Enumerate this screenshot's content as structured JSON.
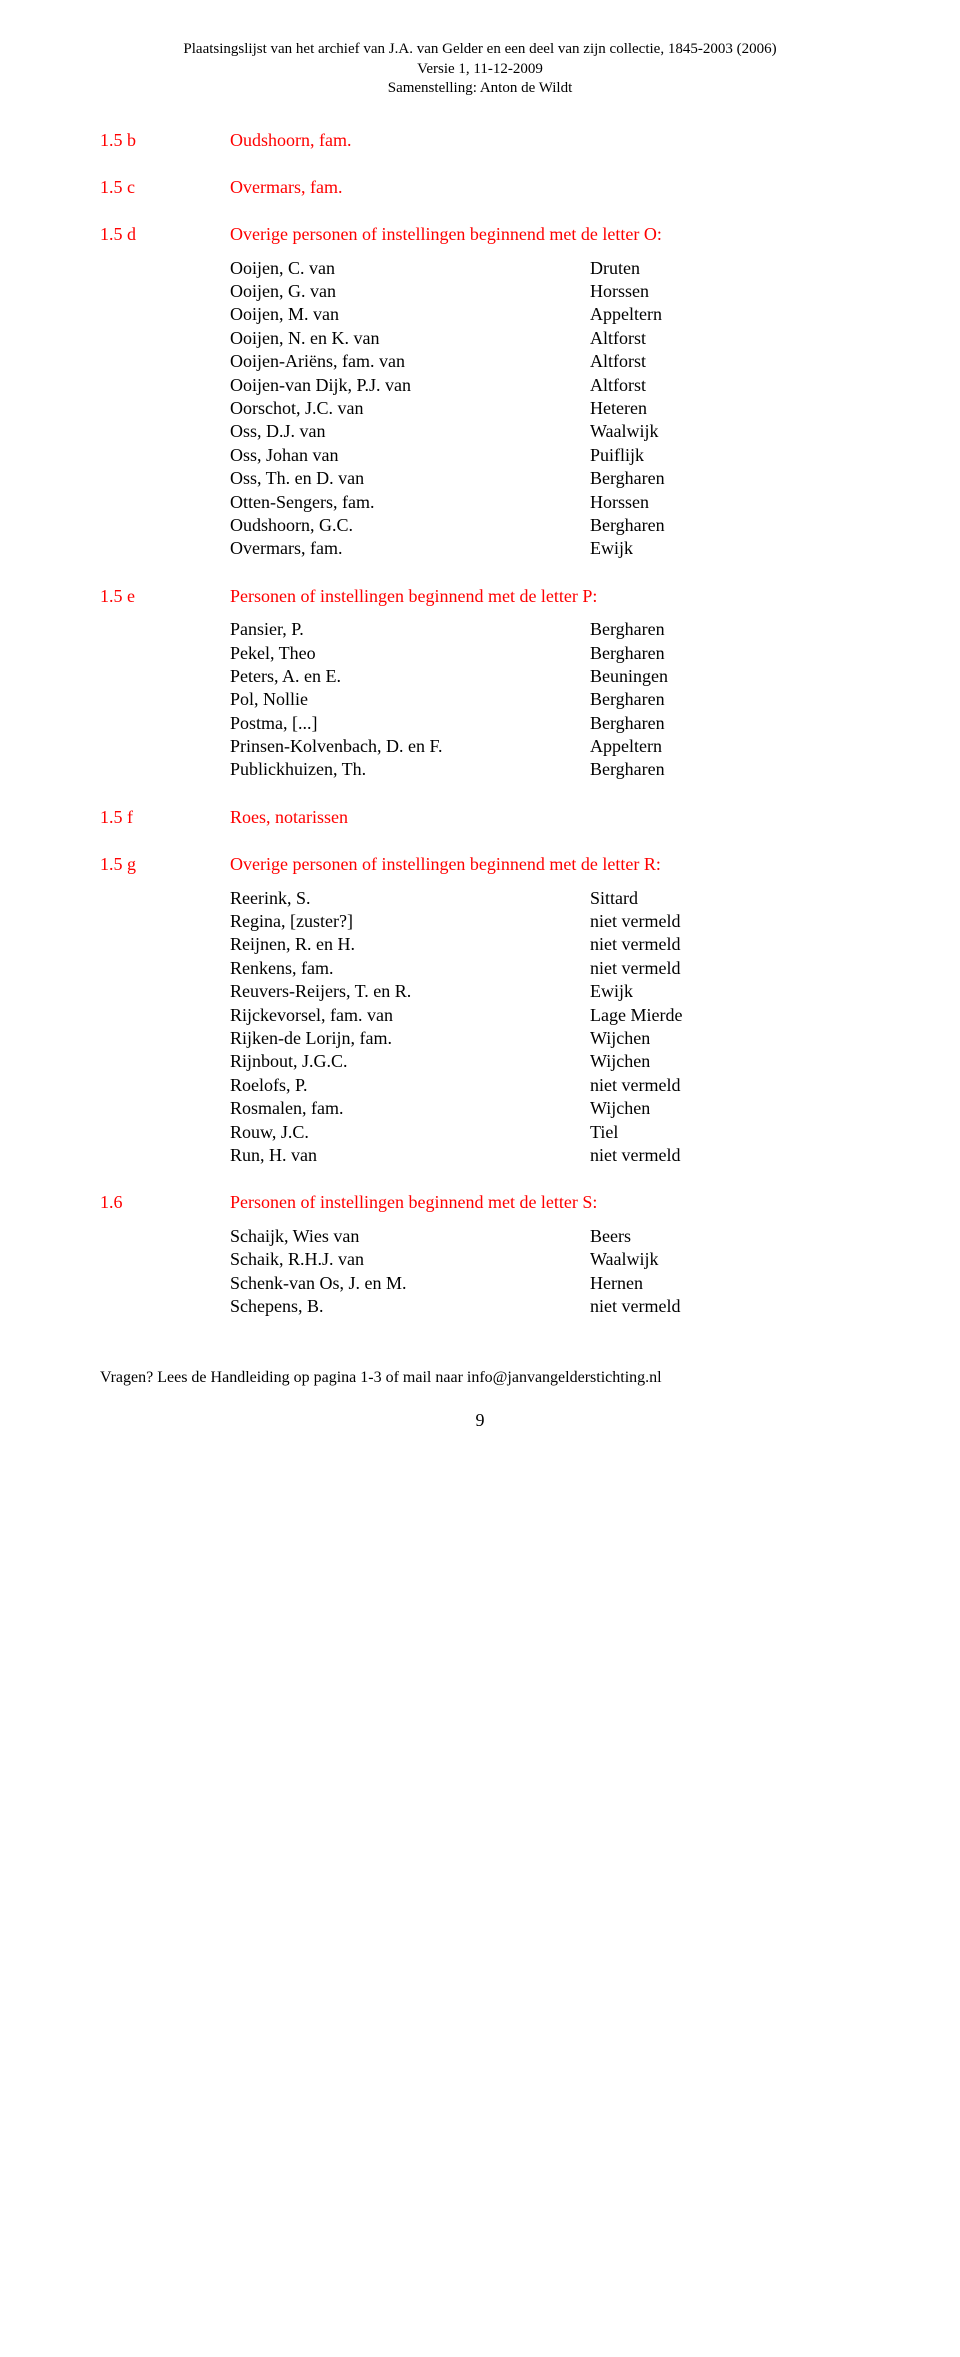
{
  "header": {
    "line1": "Plaatsingslijst van het archief van J.A. van Gelder en een deel van zijn collectie, 1845-2003 (2006)",
    "line2": "Versie 1, 11-12-2009",
    "line3": "Samenstelling: Anton de Wildt"
  },
  "sections": [
    {
      "num": "1.5 b",
      "title": "Oudshoorn, fam.",
      "entries": []
    },
    {
      "num": "1.5 c",
      "title": "Overmars, fam.",
      "entries": []
    },
    {
      "num": "1.5 d",
      "title": "Overige personen of instellingen beginnend met de letter O:",
      "entries": [
        {
          "name": "Ooijen, C. van",
          "place": "Druten"
        },
        {
          "name": "Ooijen, G. van",
          "place": "Horssen"
        },
        {
          "name": "Ooijen, M. van",
          "place": "Appeltern"
        },
        {
          "name": "Ooijen, N. en K. van",
          "place": "Altforst"
        },
        {
          "name": "Ooijen-Ariëns, fam. van",
          "place": "Altforst"
        },
        {
          "name": "Ooijen-van Dijk, P.J. van",
          "place": "Altforst"
        },
        {
          "name": "Oorschot, J.C. van",
          "place": "Heteren"
        },
        {
          "name": "Oss, D.J. van",
          "place": "Waalwijk"
        },
        {
          "name": "Oss, Johan van",
          "place": "Puiflijk"
        },
        {
          "name": "Oss, Th. en D. van",
          "place": "Bergharen"
        },
        {
          "name": "Otten-Sengers, fam.",
          "place": "Horssen"
        },
        {
          "name": "Oudshoorn, G.C.",
          "place": "Bergharen"
        },
        {
          "name": "Overmars, fam.",
          "place": "Ewijk"
        }
      ]
    },
    {
      "num": "1.5 e",
      "title": "Personen of instellingen beginnend met de letter P:",
      "entries": [
        {
          "name": "Pansier, P.",
          "place": "Bergharen"
        },
        {
          "name": "Pekel, Theo",
          "place": "Bergharen"
        },
        {
          "name": "Peters, A. en E.",
          "place": "Beuningen"
        },
        {
          "name": "Pol, Nollie",
          "place": "Bergharen"
        },
        {
          "name": "Postma, [...]",
          "place": "Bergharen"
        },
        {
          "name": "Prinsen-Kolvenbach, D. en F.",
          "place": "Appeltern"
        },
        {
          "name": "Publickhuizen, Th.",
          "place": "Bergharen"
        }
      ]
    },
    {
      "num": "1.5 f",
      "title": "Roes, notarissen",
      "entries": []
    },
    {
      "num": "1.5 g",
      "title": "Overige personen of instellingen beginnend met de letter R:",
      "entries": [
        {
          "name": "Reerink, S.",
          "place": "Sittard"
        },
        {
          "name": "Regina, [zuster?]",
          "place": "niet vermeld"
        },
        {
          "name": "Reijnen, R. en H.",
          "place": "niet vermeld"
        },
        {
          "name": "Renkens, fam.",
          "place": "niet vermeld"
        },
        {
          "name": "Reuvers-Reijers, T. en R.",
          "place": "Ewijk"
        },
        {
          "name": "Rijckevorsel, fam. van",
          "place": "Lage Mierde"
        },
        {
          "name": "Rijken-de Lorijn, fam.",
          "place": "Wijchen"
        },
        {
          "name": "Rijnbout, J.G.C.",
          "place": "Wijchen"
        },
        {
          "name": "Roelofs, P.",
          "place": "niet vermeld"
        },
        {
          "name": "Rosmalen, fam.",
          "place": "Wijchen"
        },
        {
          "name": "Rouw, J.C.",
          "place": "Tiel"
        },
        {
          "name": "Run, H. van",
          "place": "niet vermeld"
        }
      ]
    },
    {
      "num": "1.6",
      "title": "Personen of instellingen beginnend met de letter S:",
      "entries": [
        {
          "name": "Schaijk, Wies van",
          "place": "Beers"
        },
        {
          "name": "Schaik, R.H.J. van",
          "place": "Waalwijk"
        },
        {
          "name": "Schenk-van Os, J. en M.",
          "place": "Hernen"
        },
        {
          "name": "Schepens, B.",
          "place": "niet vermeld"
        }
      ]
    }
  ],
  "footer": {
    "text": "Vragen? Lees de Handleiding op pagina 1-3 of mail naar info@janvangelderstichting.nl",
    "pagenum": "9"
  },
  "colors": {
    "text": "#000000",
    "accent": "#ff0000",
    "background": "#ffffff"
  }
}
